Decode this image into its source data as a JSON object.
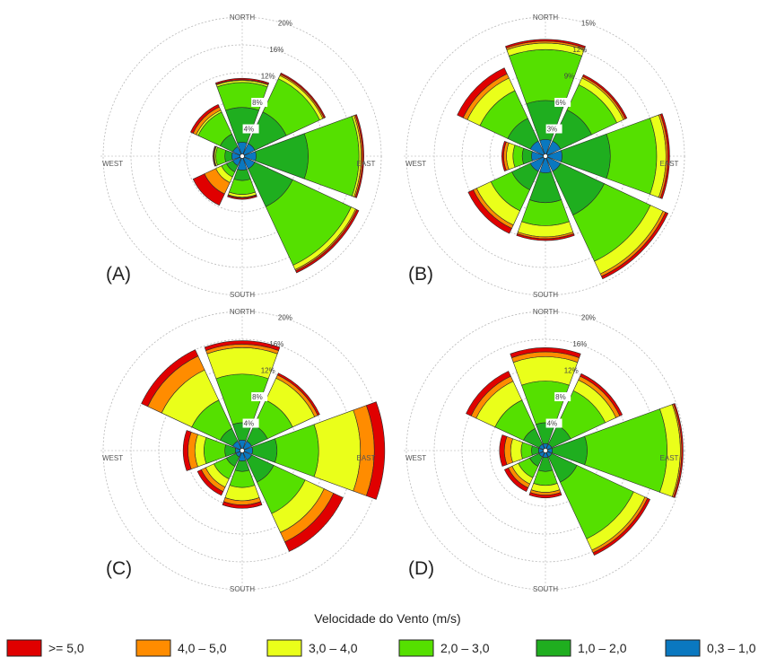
{
  "chart_data": {
    "type": "windrose",
    "legend": {
      "title": "Velocidade do Vento (m/s)",
      "bins": [
        {
          "label": ">= 5,0",
          "color": "#e00000"
        },
        {
          "label": "4,0 – 5,0",
          "color": "#ff8c00"
        },
        {
          "label": "3,0 – 4,0",
          "color": "#eaff1a"
        },
        {
          "label": "2,0 – 3,0",
          "color": "#55e000"
        },
        {
          "label": "1,0 – 2,0",
          "color": "#1fae1f"
        },
        {
          "label": "0,3 – 1,0",
          "color": "#0a78c0"
        }
      ]
    },
    "directions": [
      "N",
      "NE",
      "E",
      "SE",
      "S",
      "SW",
      "W",
      "NW"
    ],
    "direction_labels": {
      "north": "NORTH",
      "east": "EAST",
      "south": "SOUTH",
      "west": "WEST"
    },
    "panels": [
      {
        "label": "(A)",
        "rings": [
          4,
          8,
          12,
          16,
          20
        ],
        "ring_labels": [
          "4%",
          "8%",
          "12%",
          "16%",
          "20%"
        ],
        "cumulative": {
          "N": [
            2.0,
            7.0,
            10.6,
            10.9,
            11.0,
            11.2
          ],
          "NE": [
            2.0,
            7.0,
            12.3,
            12.8,
            13.0,
            13.2
          ],
          "E": [
            2.0,
            9.5,
            16.8,
            17.1,
            17.3,
            17.5
          ],
          "SE": [
            2.0,
            8.0,
            17.3,
            18.0,
            18.2,
            18.5
          ],
          "S": [
            2.0,
            3.5,
            5.5,
            5.9,
            6.0,
            6.2
          ],
          "SW": [
            1.5,
            2.5,
            3.3,
            4.2,
            6.0,
            7.8
          ],
          "W": [
            1.5,
            2.5,
            3.8,
            4.0,
            4.1,
            4.2
          ],
          "NW": [
            1.5,
            3.5,
            7.0,
            7.3,
            7.8,
            8.2
          ]
        }
      },
      {
        "label": "(B)",
        "rings": [
          3,
          6,
          9,
          12,
          15
        ],
        "ring_labels": [
          "3%",
          "6%",
          "9%",
          "12%",
          "15%"
        ],
        "cumulative": {
          "N": [
            1.8,
            6.0,
            11.5,
            12.2,
            12.4,
            12.6
          ],
          "NE": [
            1.8,
            5.5,
            8.5,
            9.3,
            9.5,
            9.7
          ],
          "E": [
            1.8,
            7.0,
            12.0,
            13.0,
            13.2,
            13.4
          ],
          "SE": [
            1.8,
            7.0,
            12.5,
            14.0,
            14.3,
            14.6
          ],
          "S": [
            1.8,
            5.0,
            7.5,
            8.7,
            8.9,
            9.1
          ],
          "SW": [
            1.8,
            4.0,
            6.5,
            8.2,
            8.6,
            9.2
          ],
          "W": [
            1.5,
            2.5,
            3.5,
            4.2,
            4.5,
            4.7
          ],
          "NW": [
            1.8,
            4.5,
            7.8,
            9.3,
            9.8,
            10.5
          ]
        }
      },
      {
        "label": "(C)",
        "rings": [
          4,
          8,
          12,
          16,
          20
        ],
        "ring_labels": [
          "4%",
          "8%",
          "12%",
          "16%",
          "20%"
        ],
        "cumulative": {
          "N": [
            1.5,
            4.0,
            11.0,
            14.8,
            15.3,
            15.8
          ],
          "NE": [
            1.5,
            4.0,
            8.0,
            11.5,
            12.0,
            12.3
          ],
          "E": [
            1.5,
            5.0,
            11.0,
            17.0,
            19.0,
            20.5
          ],
          "SE": [
            1.5,
            5.0,
            10.0,
            13.0,
            14.5,
            16.0
          ],
          "S": [
            1.5,
            3.0,
            5.3,
            7.2,
            7.8,
            8.3
          ],
          "SW": [
            1.0,
            2.5,
            4.5,
            5.8,
            6.5,
            7.1
          ],
          "W": [
            1.0,
            2.5,
            5.5,
            6.8,
            7.8,
            8.5
          ],
          "NW": [
            1.5,
            3.5,
            8.0,
            12.8,
            15.0,
            16.0
          ]
        }
      },
      {
        "label": "(D)",
        "rings": [
          4,
          8,
          12,
          16,
          20
        ],
        "ring_labels": [
          "4%",
          "8%",
          "12%",
          "16%",
          "20%"
        ],
        "cumulative": {
          "N": [
            1.0,
            4.0,
            10.0,
            13.5,
            14.2,
            14.8
          ],
          "NE": [
            1.0,
            4.0,
            9.5,
            11.2,
            11.8,
            12.2
          ],
          "E": [
            1.0,
            6.0,
            17.5,
            19.4,
            19.6,
            19.8
          ],
          "SE": [
            1.0,
            5.0,
            14.0,
            15.8,
            16.2,
            16.6
          ],
          "S": [
            1.0,
            3.0,
            5.0,
            6.0,
            6.4,
            6.8
          ],
          "SW": [
            1.0,
            2.5,
            4.3,
            5.3,
            5.9,
            6.5
          ],
          "W": [
            1.0,
            2.0,
            3.5,
            5.0,
            5.9,
            6.6
          ],
          "NW": [
            1.0,
            3.5,
            8.0,
            11.0,
            11.8,
            12.6
          ]
        }
      }
    ]
  }
}
